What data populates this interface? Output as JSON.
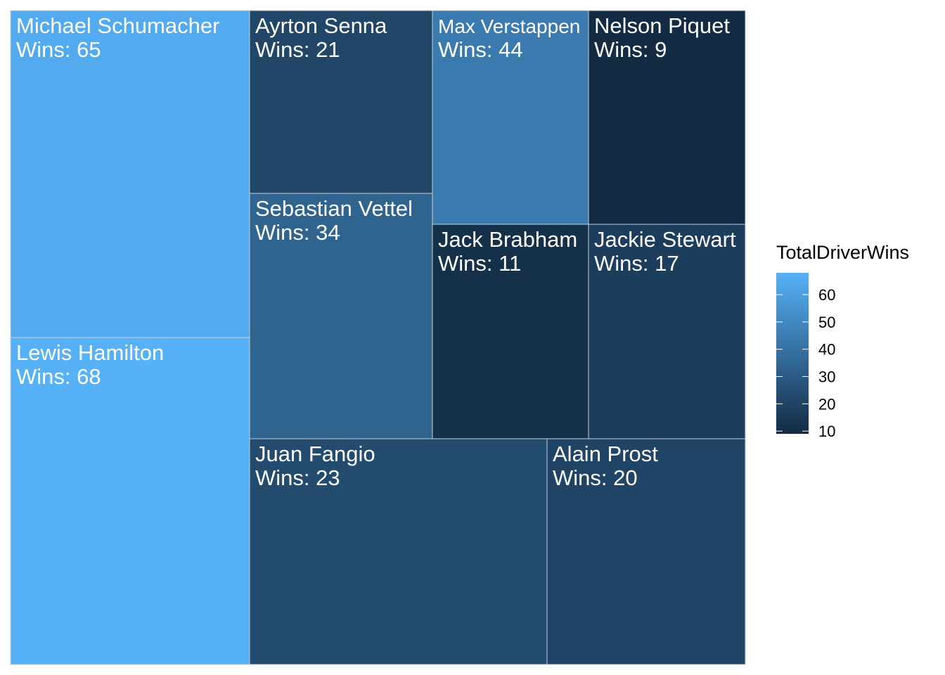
{
  "chart_data": {
    "type": "treemap",
    "label_prefix": "Wins: ",
    "items": [
      {
        "name": "Michael Schumacher",
        "value": 65
      },
      {
        "name": "Lewis Hamilton",
        "value": 68
      },
      {
        "name": "Ayrton Senna",
        "value": 21
      },
      {
        "name": "Sebastian Vettel",
        "value": 34
      },
      {
        "name": "Max Verstappen",
        "value": 44
      },
      {
        "name": "Nelson Piquet",
        "value": 9
      },
      {
        "name": "Jack Brabham",
        "value": 11
      },
      {
        "name": "Jackie Stewart",
        "value": 17
      },
      {
        "name": "Juan Fangio",
        "value": 23
      },
      {
        "name": "Alain Prost",
        "value": 20
      }
    ],
    "legend": {
      "title": "TotalDriverWins",
      "ticks": [
        60,
        50,
        40,
        30,
        20,
        10
      ],
      "range": [
        9,
        68
      ],
      "color_low": "#132B43",
      "color_high": "#56B1F7",
      "placement": "right"
    }
  }
}
